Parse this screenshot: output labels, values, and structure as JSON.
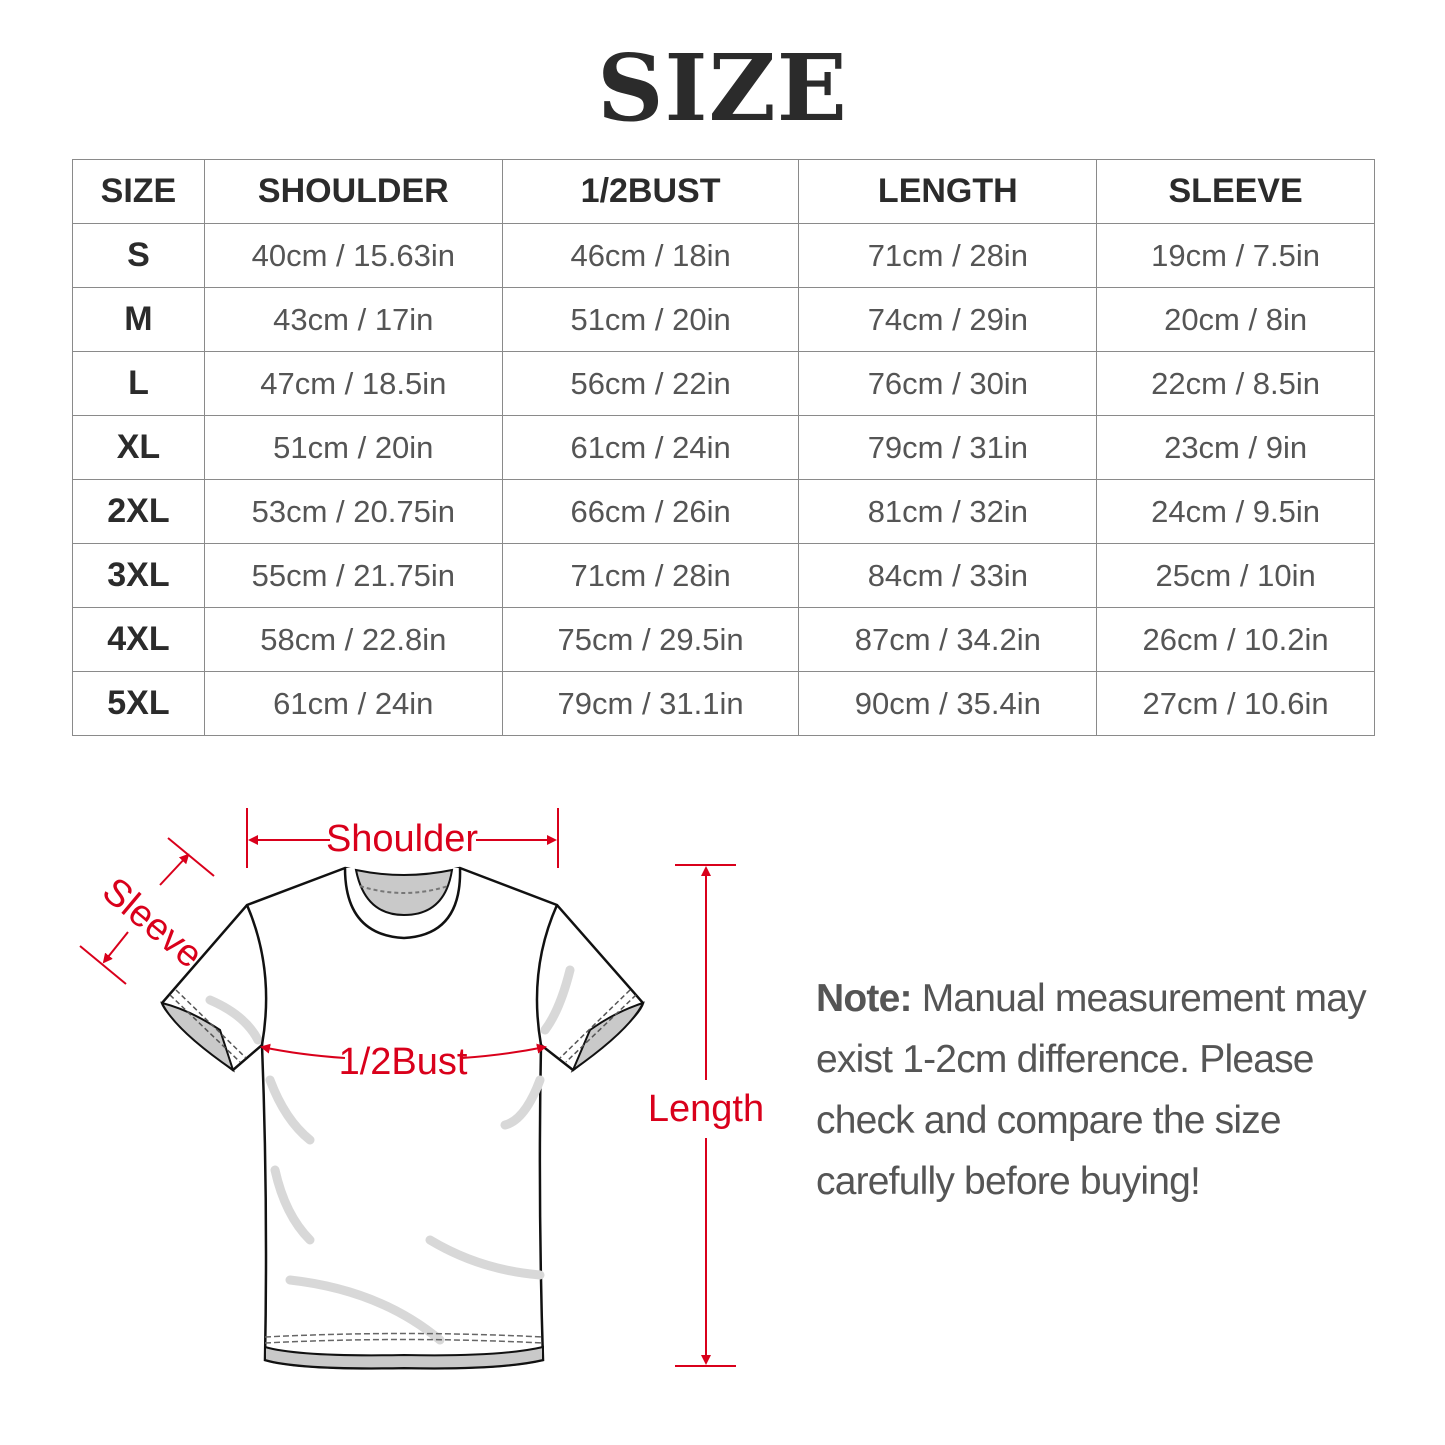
{
  "title": "SIZE",
  "table": {
    "headers": [
      "SIZE",
      "SHOULDER",
      "1/2BUST",
      "LENGTH",
      "SLEEVE"
    ],
    "rows": [
      [
        "S",
        "40cm / 15.63in",
        "46cm / 18in",
        "71cm / 28in",
        "19cm / 7.5in"
      ],
      [
        "M",
        "43cm / 17in",
        "51cm / 20in",
        "74cm / 29in",
        "20cm / 8in"
      ],
      [
        "L",
        "47cm / 18.5in",
        "56cm / 22in",
        "76cm / 30in",
        "22cm / 8.5in"
      ],
      [
        "XL",
        "51cm / 20in",
        "61cm / 24in",
        "79cm / 31in",
        "23cm / 9in"
      ],
      [
        "2XL",
        "53cm / 20.75in",
        "66cm / 26in",
        "81cm / 32in",
        "24cm / 9.5in"
      ],
      [
        "3XL",
        "55cm / 21.75in",
        "71cm / 28in",
        "84cm / 33in",
        "25cm / 10in"
      ],
      [
        "4XL",
        "58cm / 22.8in",
        "75cm / 29.5in",
        "87cm / 34.2in",
        "26cm / 10.2in"
      ],
      [
        "5XL",
        "61cm / 24in",
        "79cm / 31.1in",
        "90cm / 35.4in",
        "27cm / 10.6in"
      ]
    ]
  },
  "diagram": {
    "shoulder_label": "Shoulder",
    "sleeve_label": "Sleeve",
    "bust_label": "1/2Bust",
    "length_label": "Length",
    "accent_color": "#d9001b"
  },
  "note": {
    "label": "Note:",
    "text": "Manual measurement may exist 1-2cm difference. Please check and compare the size carefully before buying!"
  }
}
